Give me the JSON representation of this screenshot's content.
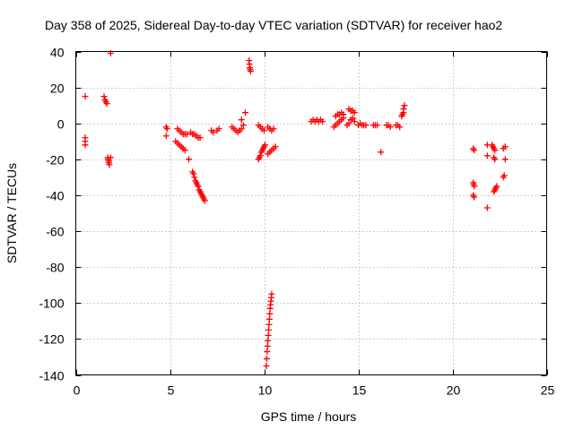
{
  "chart_data": {
    "type": "scatter",
    "title": "Day 358 of 2025, Sidereal Day-to-day VTEC variation (SDTVAR) for receiver hao2",
    "xlabel": "GPS time / hours",
    "ylabel": "SDTVAR / TECUs",
    "xlim": [
      0,
      25
    ],
    "ylim": [
      -140,
      40
    ],
    "xticks": [
      0,
      5,
      10,
      15,
      20,
      25
    ],
    "yticks": [
      -140,
      -120,
      -100,
      -80,
      -60,
      -40,
      -20,
      0,
      20,
      40
    ],
    "xtick_labels": [
      "0",
      "5",
      "10",
      "15",
      "20",
      "25"
    ],
    "ytick_labels": [
      "-140",
      "-120",
      "-100",
      "-80",
      "-60",
      "-40",
      "-20",
      "0",
      "20",
      "40"
    ],
    "grid": true,
    "marker": "+",
    "color": "#ff0000",
    "series": [
      {
        "name": "SDTVAR",
        "points": [
          [
            0.5,
            15
          ],
          [
            0.5,
            -8
          ],
          [
            0.5,
            -10
          ],
          [
            0.5,
            -12
          ],
          [
            1.5,
            15
          ],
          [
            1.55,
            13
          ],
          [
            1.6,
            12
          ],
          [
            1.65,
            11
          ],
          [
            1.7,
            -19
          ],
          [
            1.72,
            -20
          ],
          [
            1.74,
            -21
          ],
          [
            1.76,
            -22
          ],
          [
            1.78,
            -23
          ],
          [
            1.85,
            -19
          ],
          [
            1.85,
            39
          ],
          [
            4.8,
            -2
          ],
          [
            4.85,
            -3
          ],
          [
            4.8,
            -7
          ],
          [
            5.3,
            -10
          ],
          [
            5.4,
            -11
          ],
          [
            5.5,
            -12
          ],
          [
            5.6,
            -13
          ],
          [
            5.7,
            -14
          ],
          [
            5.8,
            -15
          ],
          [
            5.4,
            -3
          ],
          [
            5.5,
            -4
          ],
          [
            5.6,
            -5
          ],
          [
            5.7,
            -6
          ],
          [
            5.8,
            -6
          ],
          [
            5.9,
            -6
          ],
          [
            6.0,
            -20
          ],
          [
            6.1,
            -5
          ],
          [
            6.2,
            -6
          ],
          [
            6.3,
            -6
          ],
          [
            6.4,
            -7
          ],
          [
            6.5,
            -8
          ],
          [
            6.6,
            -8
          ],
          [
            6.2,
            -27
          ],
          [
            6.25,
            -28
          ],
          [
            6.3,
            -30
          ],
          [
            6.35,
            -32
          ],
          [
            6.4,
            -33
          ],
          [
            6.45,
            -34
          ],
          [
            6.5,
            -35
          ],
          [
            6.55,
            -37
          ],
          [
            6.6,
            -38
          ],
          [
            6.65,
            -39
          ],
          [
            6.7,
            -40
          ],
          [
            6.75,
            -41
          ],
          [
            6.8,
            -42
          ],
          [
            6.85,
            -43
          ],
          [
            7.2,
            -4
          ],
          [
            7.3,
            -5
          ],
          [
            7.5,
            -4
          ],
          [
            7.6,
            -3
          ],
          [
            8.3,
            -2
          ],
          [
            8.4,
            -3
          ],
          [
            8.5,
            -4
          ],
          [
            8.6,
            -5
          ],
          [
            8.7,
            -4
          ],
          [
            8.8,
            -3
          ],
          [
            8.9,
            -1
          ],
          [
            8.8,
            2
          ],
          [
            9.0,
            6
          ],
          [
            9.2,
            35
          ],
          [
            9.22,
            33
          ],
          [
            9.24,
            31
          ],
          [
            9.26,
            30
          ],
          [
            9.28,
            29
          ],
          [
            9.7,
            -1
          ],
          [
            9.8,
            -2
          ],
          [
            9.9,
            -3
          ],
          [
            10.0,
            -4
          ],
          [
            9.7,
            -20
          ],
          [
            9.75,
            -19
          ],
          [
            9.8,
            -18
          ],
          [
            9.85,
            -16
          ],
          [
            9.9,
            -15
          ],
          [
            9.95,
            -14
          ],
          [
            10.0,
            -13
          ],
          [
            10.05,
            -12
          ],
          [
            10.2,
            -17
          ],
          [
            10.3,
            -16
          ],
          [
            10.4,
            -15
          ],
          [
            10.5,
            -14
          ],
          [
            10.6,
            -13
          ],
          [
            10.2,
            -2
          ],
          [
            10.3,
            -3
          ],
          [
            10.4,
            -4
          ],
          [
            10.5,
            -3
          ],
          [
            10.12,
            -135
          ],
          [
            10.14,
            -131
          ],
          [
            10.16,
            -127
          ],
          [
            10.18,
            -124
          ],
          [
            10.2,
            -121
          ],
          [
            10.22,
            -118
          ],
          [
            10.24,
            -115
          ],
          [
            10.26,
            -112
          ],
          [
            10.28,
            -109
          ],
          [
            10.3,
            -106
          ],
          [
            10.32,
            -103
          ],
          [
            10.34,
            -101
          ],
          [
            10.36,
            -99
          ],
          [
            10.38,
            -97
          ],
          [
            10.4,
            -95
          ],
          [
            12.5,
            1
          ],
          [
            12.6,
            2
          ],
          [
            12.7,
            1
          ],
          [
            12.8,
            2
          ],
          [
            12.9,
            1
          ],
          [
            13.0,
            2
          ],
          [
            13.1,
            1
          ],
          [
            13.7,
            -2
          ],
          [
            13.8,
            -1
          ],
          [
            13.9,
            0
          ],
          [
            14.0,
            1
          ],
          [
            14.1,
            2
          ],
          [
            14.2,
            3
          ],
          [
            13.8,
            4
          ],
          [
            13.9,
            5
          ],
          [
            14.0,
            5
          ],
          [
            14.1,
            6
          ],
          [
            14.2,
            5
          ],
          [
            14.4,
            -1
          ],
          [
            14.5,
            0
          ],
          [
            14.6,
            2
          ],
          [
            14.7,
            3
          ],
          [
            14.8,
            1
          ],
          [
            14.5,
            8
          ],
          [
            14.6,
            7
          ],
          [
            14.7,
            7
          ],
          [
            14.8,
            6
          ],
          [
            15.0,
            -1
          ],
          [
            15.1,
            0
          ],
          [
            15.2,
            -1
          ],
          [
            15.3,
            -1
          ],
          [
            15.4,
            -1
          ],
          [
            15.8,
            -1
          ],
          [
            15.9,
            -1
          ],
          [
            16.0,
            -1
          ],
          [
            16.2,
            -16
          ],
          [
            16.5,
            -1
          ],
          [
            16.6,
            -1
          ],
          [
            16.7,
            -2
          ],
          [
            17.0,
            -1
          ],
          [
            17.1,
            -1
          ],
          [
            17.2,
            -2
          ],
          [
            17.3,
            4
          ],
          [
            17.35,
            5
          ],
          [
            17.4,
            6
          ],
          [
            17.4,
            8
          ],
          [
            17.45,
            10
          ],
          [
            21.1,
            -14
          ],
          [
            21.15,
            -15
          ],
          [
            21.1,
            -33
          ],
          [
            21.13,
            -34
          ],
          [
            21.16,
            -35
          ],
          [
            21.1,
            -40
          ],
          [
            21.15,
            -41
          ],
          [
            21.85,
            -12
          ],
          [
            21.85,
            -18
          ],
          [
            21.85,
            -47
          ],
          [
            22.1,
            -12
          ],
          [
            22.15,
            -13
          ],
          [
            22.2,
            -14
          ],
          [
            22.25,
            -15
          ],
          [
            22.2,
            -19
          ],
          [
            22.25,
            -20
          ],
          [
            22.2,
            -38
          ],
          [
            22.25,
            -37
          ],
          [
            22.3,
            -36
          ],
          [
            22.35,
            -35
          ],
          [
            22.7,
            -14
          ],
          [
            22.8,
            -13
          ],
          [
            22.8,
            -20
          ],
          [
            22.7,
            -30
          ],
          [
            22.75,
            -29
          ]
        ]
      }
    ]
  }
}
